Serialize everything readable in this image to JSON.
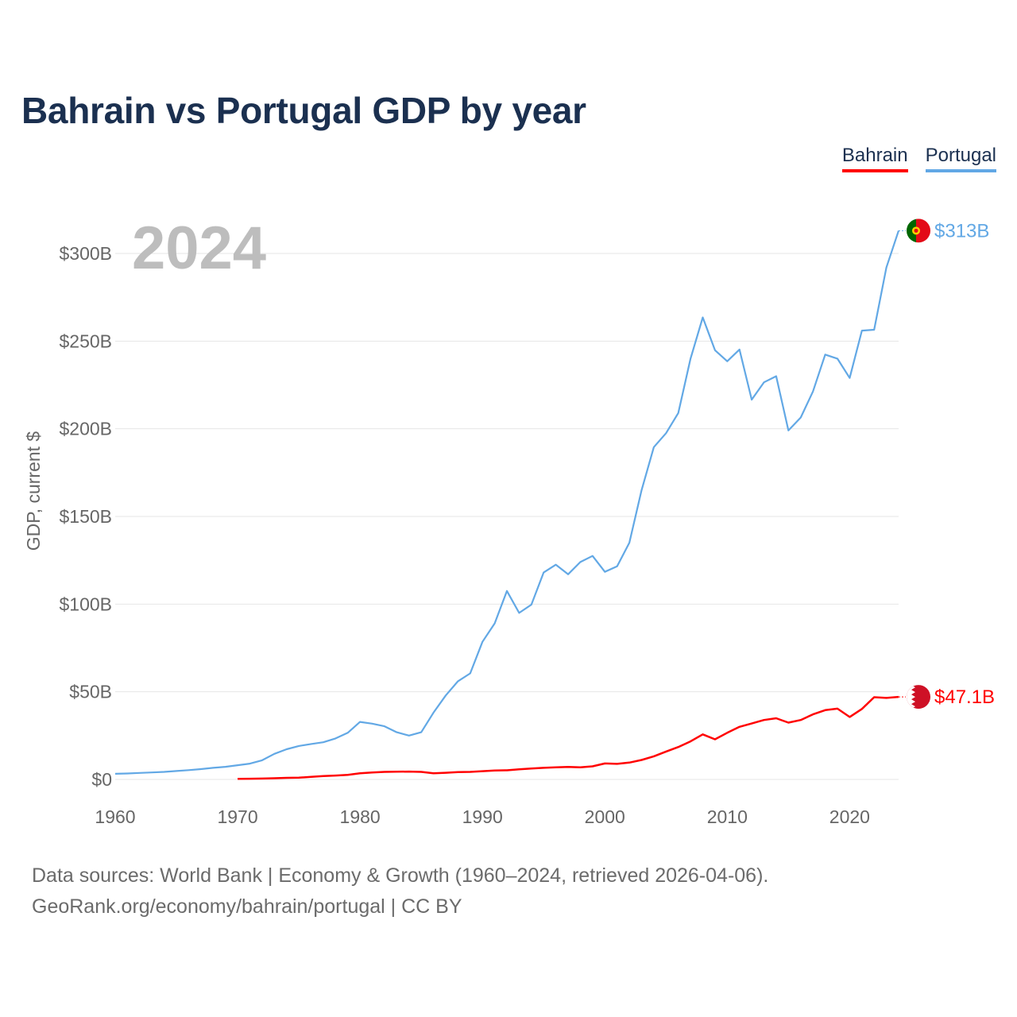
{
  "title": "Bahrain vs Portugal GDP by year",
  "legend": {
    "bahrain": "Bahrain",
    "portugal": "Portugal"
  },
  "year_label": "2024",
  "colors": {
    "bahrain": "#ff0000",
    "portugal": "#62a8e5",
    "title": "#1b3050",
    "grid": "#e6e6e6",
    "axis_text": "#666666"
  },
  "footer": {
    "line1": "Data sources: World Bank | Economy & Growth (1960–2024, retrieved 2026-04-06).",
    "line2": "GeoRank.org/economy/bahrain/portugal | CC BY"
  },
  "end_labels": {
    "portugal": "$313B",
    "bahrain": "$47.1B"
  },
  "chart_data": {
    "type": "line",
    "title": "Bahrain vs Portugal GDP by year",
    "xlabel": "",
    "ylabel": "GDP, current $",
    "xlim": [
      1960,
      2024
    ],
    "ylim": [
      0,
      300
    ],
    "x_ticks": [
      {
        "value": 1960,
        "label": "1960"
      },
      {
        "value": 1970,
        "label": "1970"
      },
      {
        "value": 1980,
        "label": "1980"
      },
      {
        "value": 1990,
        "label": "1990"
      },
      {
        "value": 2000,
        "label": "2000"
      },
      {
        "value": 2010,
        "label": "2010"
      },
      {
        "value": 2020,
        "label": "2020"
      }
    ],
    "y_ticks": [
      {
        "value": 0,
        "label": "$0"
      },
      {
        "value": 50,
        "label": "$50B"
      },
      {
        "value": 100,
        "label": "$100B"
      },
      {
        "value": 150,
        "label": "$150B"
      },
      {
        "value": 200,
        "label": "$200B"
      },
      {
        "value": 250,
        "label": "$250B"
      },
      {
        "value": 300,
        "label": "$300B"
      }
    ],
    "grid": true,
    "legend_position": "top-right",
    "series": [
      {
        "name": "Portugal",
        "color": "#62a8e5",
        "x": [
          1960,
          1961,
          1962,
          1963,
          1964,
          1965,
          1966,
          1967,
          1968,
          1969,
          1970,
          1971,
          1972,
          1973,
          1974,
          1975,
          1976,
          1977,
          1978,
          1979,
          1980,
          1981,
          1982,
          1983,
          1984,
          1985,
          1986,
          1987,
          1988,
          1989,
          1990,
          1991,
          1992,
          1993,
          1994,
          1995,
          1996,
          1997,
          1998,
          1999,
          2000,
          2001,
          2002,
          2003,
          2004,
          2005,
          2006,
          2007,
          2008,
          2009,
          2010,
          2011,
          2012,
          2013,
          2014,
          2015,
          2016,
          2017,
          2018,
          2019,
          2020,
          2021,
          2022,
          2023,
          2024
        ],
        "values": [
          3.2,
          3.4,
          3.7,
          4.0,
          4.3,
          4.8,
          5.3,
          5.9,
          6.6,
          7.2,
          8.1,
          9.0,
          10.9,
          14.6,
          17.2,
          19.1,
          20.2,
          21.2,
          23.4,
          26.6,
          32.8,
          31.8,
          30.3,
          26.9,
          25.0,
          26.9,
          38.1,
          47.9,
          56.0,
          60.5,
          78.5,
          89.0,
          107.5,
          95.0,
          99.7,
          118.0,
          122.5,
          117.0,
          124.0,
          127.5,
          118.4,
          121.6,
          135.0,
          165.0,
          189.5,
          197.5,
          209.0,
          240.0,
          263.5,
          244.8,
          238.5,
          245.2,
          216.6,
          226.5,
          230.0,
          199.1,
          206.4,
          221.3,
          242.3,
          240.0,
          229.0,
          256.0,
          256.5,
          292.0,
          313.0
        ]
      },
      {
        "name": "Bahrain",
        "color": "#ff0000",
        "x": [
          1970,
          1971,
          1972,
          1973,
          1974,
          1975,
          1976,
          1977,
          1978,
          1979,
          1980,
          1981,
          1982,
          1983,
          1984,
          1985,
          1986,
          1987,
          1988,
          1989,
          1990,
          1991,
          1992,
          1993,
          1994,
          1995,
          1996,
          1997,
          1998,
          1999,
          2000,
          2001,
          2002,
          2003,
          2004,
          2005,
          2006,
          2007,
          2008,
          2009,
          2010,
          2011,
          2012,
          2013,
          2014,
          2015,
          2016,
          2017,
          2018,
          2019,
          2020,
          2021,
          2022,
          2023,
          2024
        ],
        "values": [
          0.3,
          0.4,
          0.5,
          0.7,
          0.9,
          1.0,
          1.5,
          1.9,
          2.2,
          2.6,
          3.5,
          4.0,
          4.3,
          4.4,
          4.5,
          4.3,
          3.5,
          3.8,
          4.2,
          4.3,
          4.7,
          5.1,
          5.2,
          5.8,
          6.2,
          6.6,
          6.9,
          7.1,
          6.9,
          7.5,
          9.1,
          8.9,
          9.6,
          11.1,
          13.2,
          15.9,
          18.5,
          21.7,
          25.7,
          22.9,
          26.6,
          30.0,
          31.9,
          33.9,
          34.9,
          32.4,
          33.9,
          37.1,
          39.5,
          40.4,
          35.6,
          40.2,
          46.9,
          46.5,
          47.1
        ]
      }
    ]
  }
}
